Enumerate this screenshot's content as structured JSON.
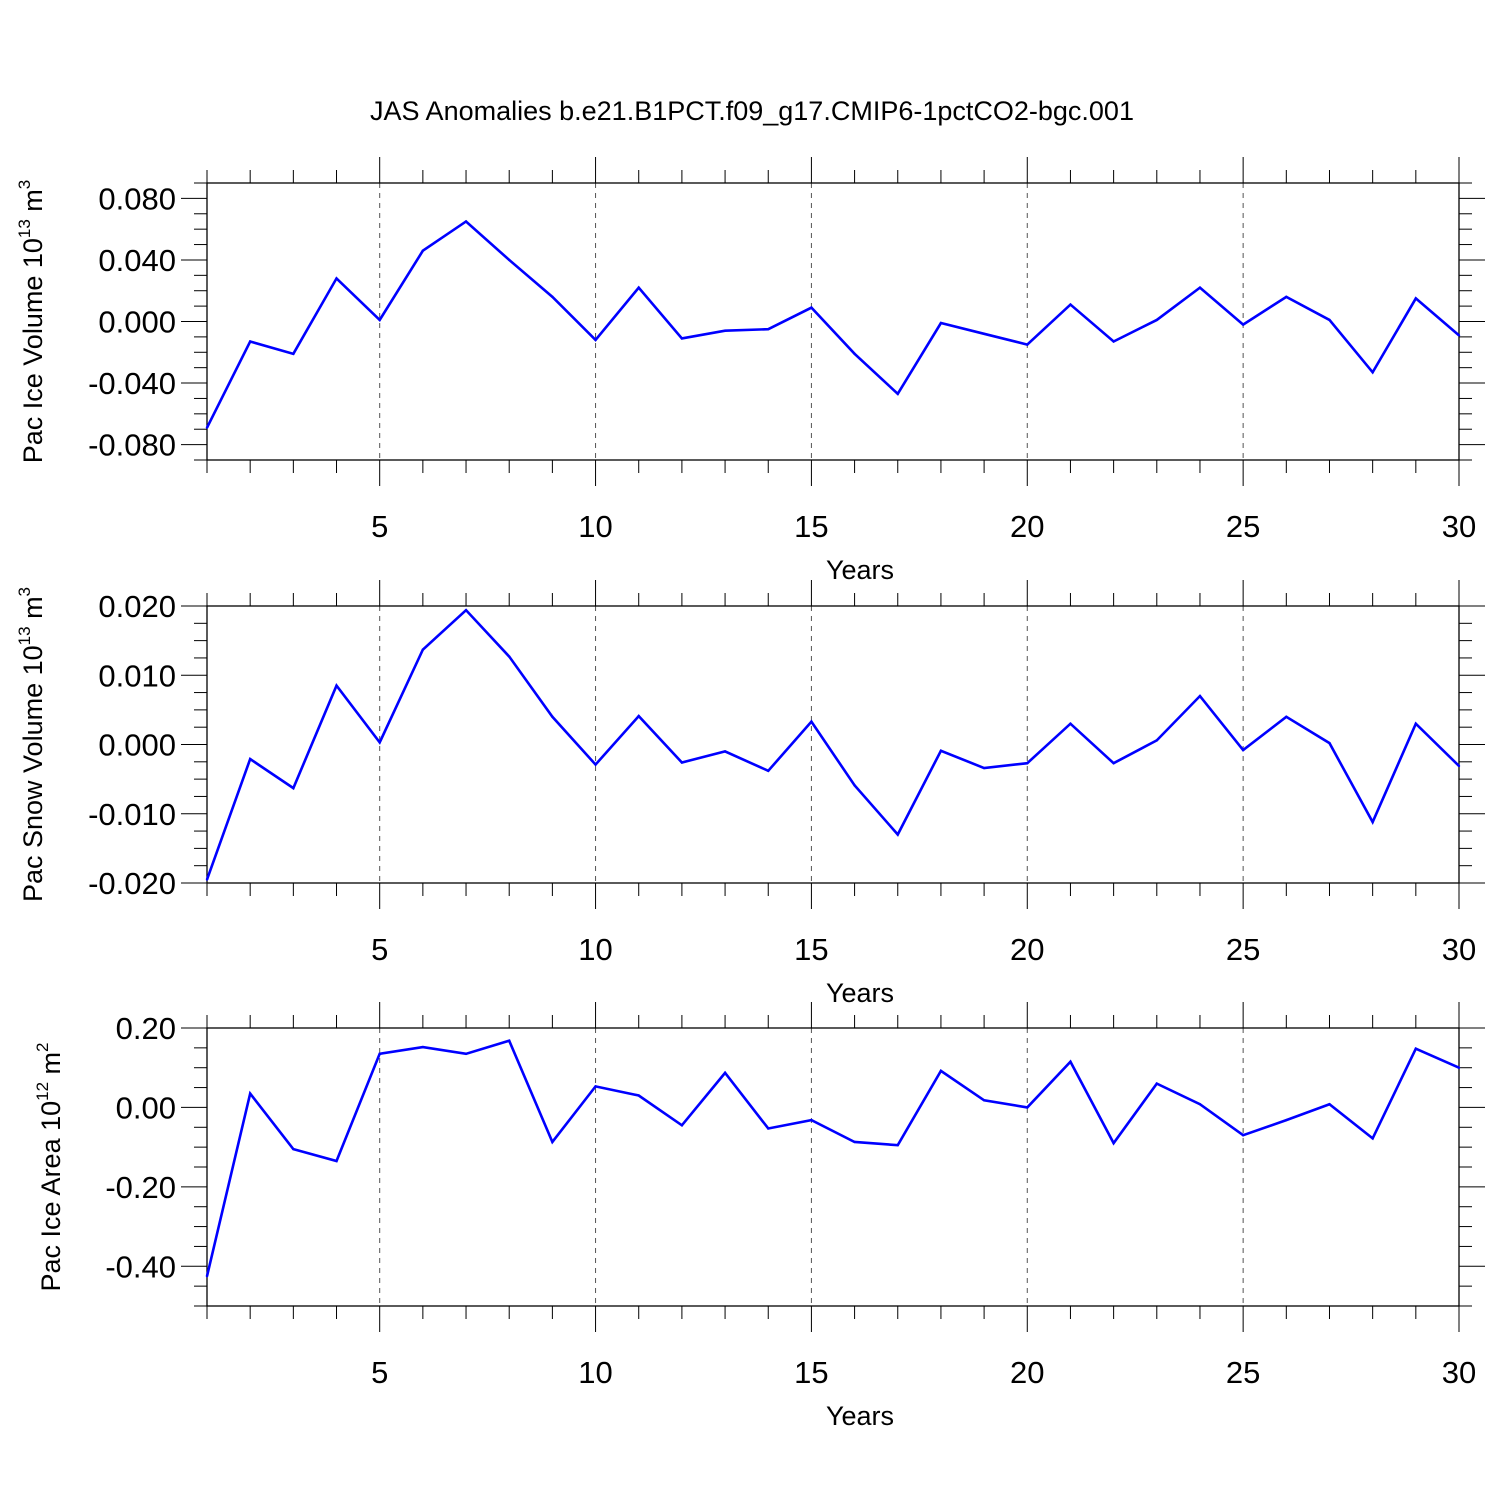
{
  "title": "JAS Anomalies b.e21.B1PCT.f09_g17.CMIP6-1pctCO2-bgc.001",
  "line_color": "#0000ff",
  "chart_data": [
    {
      "type": "line",
      "ylabel": "Pac Ice Volume 10",
      "ylabel_exp": "13",
      "ylabel_unit": " m",
      "ylabel_unit_exp": "3",
      "xlabel": "Years",
      "xlim": [
        1,
        30
      ],
      "ylim": [
        -0.09,
        0.09
      ],
      "xticks": [
        5,
        10,
        15,
        20,
        25,
        30
      ],
      "xtick_labels": [
        "5",
        "10",
        "15",
        "20",
        "25",
        "30"
      ],
      "yticks": [
        -0.08,
        -0.04,
        0.0,
        0.04,
        0.08
      ],
      "ytick_labels": [
        "-0.080",
        "-0.040",
        "0.000",
        "0.040",
        "0.080"
      ],
      "y_minor_step": 0.01,
      "x": [
        1,
        2,
        3,
        4,
        5,
        6,
        7,
        8,
        9,
        10,
        11,
        12,
        13,
        14,
        15,
        16,
        17,
        18,
        19,
        20,
        21,
        22,
        23,
        24,
        25,
        26,
        27,
        28,
        29,
        30
      ],
      "values": [
        -0.069,
        -0.013,
        -0.021,
        0.028,
        0.001,
        0.046,
        0.065,
        0.04,
        0.016,
        -0.012,
        0.022,
        -0.011,
        -0.006,
        -0.005,
        0.009,
        -0.021,
        -0.047,
        -0.001,
        -0.008,
        -0.015,
        0.011,
        -0.013,
        0.001,
        0.022,
        -0.002,
        0.016,
        0.001,
        -0.033,
        0.015,
        -0.009
      ]
    },
    {
      "type": "line",
      "ylabel": "Pac Snow Volume 10",
      "ylabel_exp": "13",
      "ylabel_unit": " m",
      "ylabel_unit_exp": "3",
      "xlabel": "Years",
      "xlim": [
        1,
        30
      ],
      "ylim": [
        -0.02,
        0.02
      ],
      "xticks": [
        5,
        10,
        15,
        20,
        25,
        30
      ],
      "xtick_labels": [
        "5",
        "10",
        "15",
        "20",
        "25",
        "30"
      ],
      "yticks": [
        -0.02,
        -0.01,
        0.0,
        0.01,
        0.02
      ],
      "ytick_labels": [
        "-0.020",
        "-0.010",
        "0.000",
        "0.010",
        "0.020"
      ],
      "y_minor_step": 0.0025,
      "x": [
        1,
        2,
        3,
        4,
        5,
        6,
        7,
        8,
        9,
        10,
        11,
        12,
        13,
        14,
        15,
        16,
        17,
        18,
        19,
        20,
        21,
        22,
        23,
        24,
        25,
        26,
        27,
        28,
        29,
        30
      ],
      "values": [
        -0.0195,
        -0.0021,
        -0.0063,
        0.0085,
        0.0003,
        0.0137,
        0.0194,
        0.0127,
        0.004,
        -0.0029,
        0.0041,
        -0.0026,
        -0.001,
        -0.0038,
        0.0033,
        -0.0059,
        -0.013,
        -0.0009,
        -0.0034,
        -0.0027,
        0.003,
        -0.0027,
        0.0006,
        0.007,
        -0.0008,
        0.004,
        0.0002,
        -0.0112,
        0.003,
        -0.0031
      ]
    },
    {
      "type": "line",
      "ylabel": "Pac Ice Area 10",
      "ylabel_exp": "12",
      "ylabel_unit": " m",
      "ylabel_unit_exp": "2",
      "xlabel": "Years",
      "xlim": [
        1,
        30
      ],
      "ylim": [
        -0.5,
        0.2
      ],
      "xticks": [
        5,
        10,
        15,
        20,
        25,
        30
      ],
      "xtick_labels": [
        "5",
        "10",
        "15",
        "20",
        "25",
        "30"
      ],
      "yticks": [
        -0.4,
        -0.2,
        0.0,
        0.2
      ],
      "ytick_labels": [
        "-0.40",
        "-0.20",
        "0.00",
        "0.20"
      ],
      "y_minor_step": 0.05,
      "x": [
        1,
        2,
        3,
        4,
        5,
        6,
        7,
        8,
        9,
        10,
        11,
        12,
        13,
        14,
        15,
        16,
        17,
        18,
        19,
        20,
        21,
        22,
        23,
        24,
        25,
        26,
        27,
        28,
        29,
        30
      ],
      "values": [
        -0.425,
        0.035,
        -0.105,
        -0.135,
        0.135,
        0.152,
        0.135,
        0.168,
        -0.087,
        0.053,
        0.03,
        -0.045,
        0.087,
        -0.053,
        -0.032,
        -0.087,
        -0.095,
        0.092,
        0.018,
        0.0,
        0.115,
        -0.09,
        0.06,
        0.008,
        -0.07,
        -0.032,
        0.008,
        -0.078,
        0.148,
        0.1
      ]
    }
  ]
}
